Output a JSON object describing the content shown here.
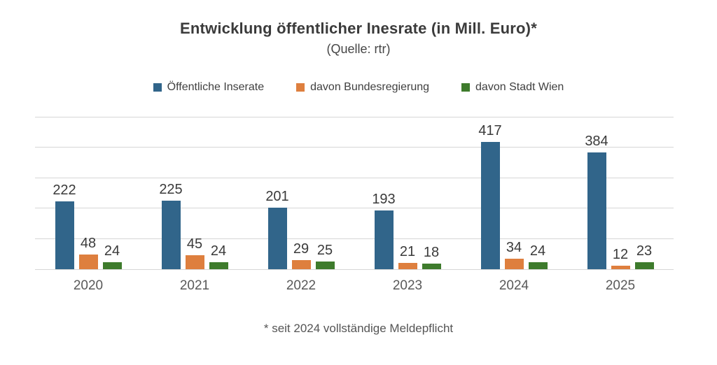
{
  "title": "Entwicklung öffentlicher Inesrate (in Mill. Euro)*",
  "subtitle": "(Quelle: rtr)",
  "footnote": "* seit 2024 vollständige Meldepflicht",
  "colors": {
    "series_blue": "#31658a",
    "series_orange": "#de7f3e",
    "series_green": "#3e7b2c",
    "gridline": "#d6d6d6",
    "title_text": "#3b3b3b",
    "data_label_text": "#3a3a3a",
    "axis_text": "#595959"
  },
  "legend": [
    {
      "label": "Öffentliche Inserate",
      "color": "#31658a"
    },
    {
      "label": "davon Bundesregierung",
      "color": "#de7f3e"
    },
    {
      "label": "davon Stadt Wien",
      "color": "#3e7b2c"
    }
  ],
  "chart_data": {
    "type": "bar",
    "title": "Entwicklung öffentlicher Inesrate (in Mill. Euro)*",
    "subtitle": "(Quelle: rtr)",
    "categories": [
      "2020",
      "2021",
      "2022",
      "2023",
      "2024",
      "2025"
    ],
    "series": [
      {
        "name": "Öffentliche Inserate",
        "color": "#31658a",
        "values": [
          222,
          225,
          201,
          193,
          417,
          384
        ]
      },
      {
        "name": "davon Bundesregierung",
        "color": "#de7f3e",
        "values": [
          48,
          45,
          29,
          21,
          34,
          12
        ]
      },
      {
        "name": "davon Stadt Wien",
        "color": "#3e7b2c",
        "values": [
          24,
          24,
          25,
          18,
          24,
          23
        ]
      }
    ],
    "xlabel": "",
    "ylabel": "",
    "ylim": [
      0,
      500
    ],
    "grid_step": 100,
    "grid": true,
    "y_tick_labels_visible": false,
    "legend_position": "top",
    "data_labels": true,
    "footnote": "* seit 2024 vollständige Meldepflicht"
  }
}
